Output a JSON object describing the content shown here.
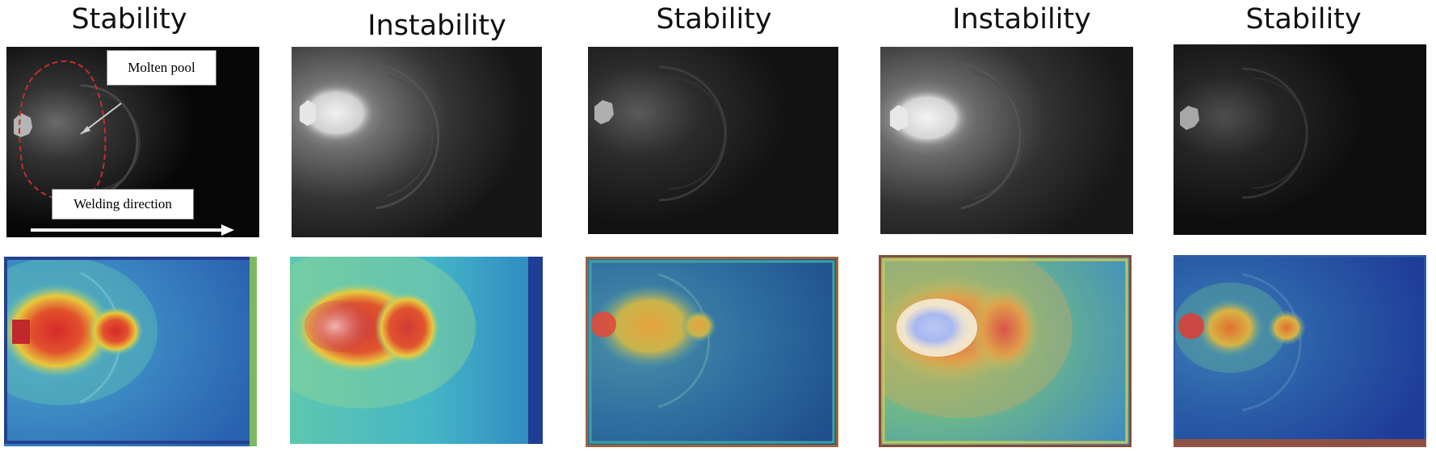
{
  "panels": [
    {
      "title": "Stability"
    },
    {
      "title": "Instability"
    },
    {
      "title": "Stability"
    },
    {
      "title": "Instability"
    },
    {
      "title": "Stability"
    }
  ],
  "annotations": {
    "molten_pool": "Molten  pool",
    "welding_direction": "Welding  direction"
  }
}
